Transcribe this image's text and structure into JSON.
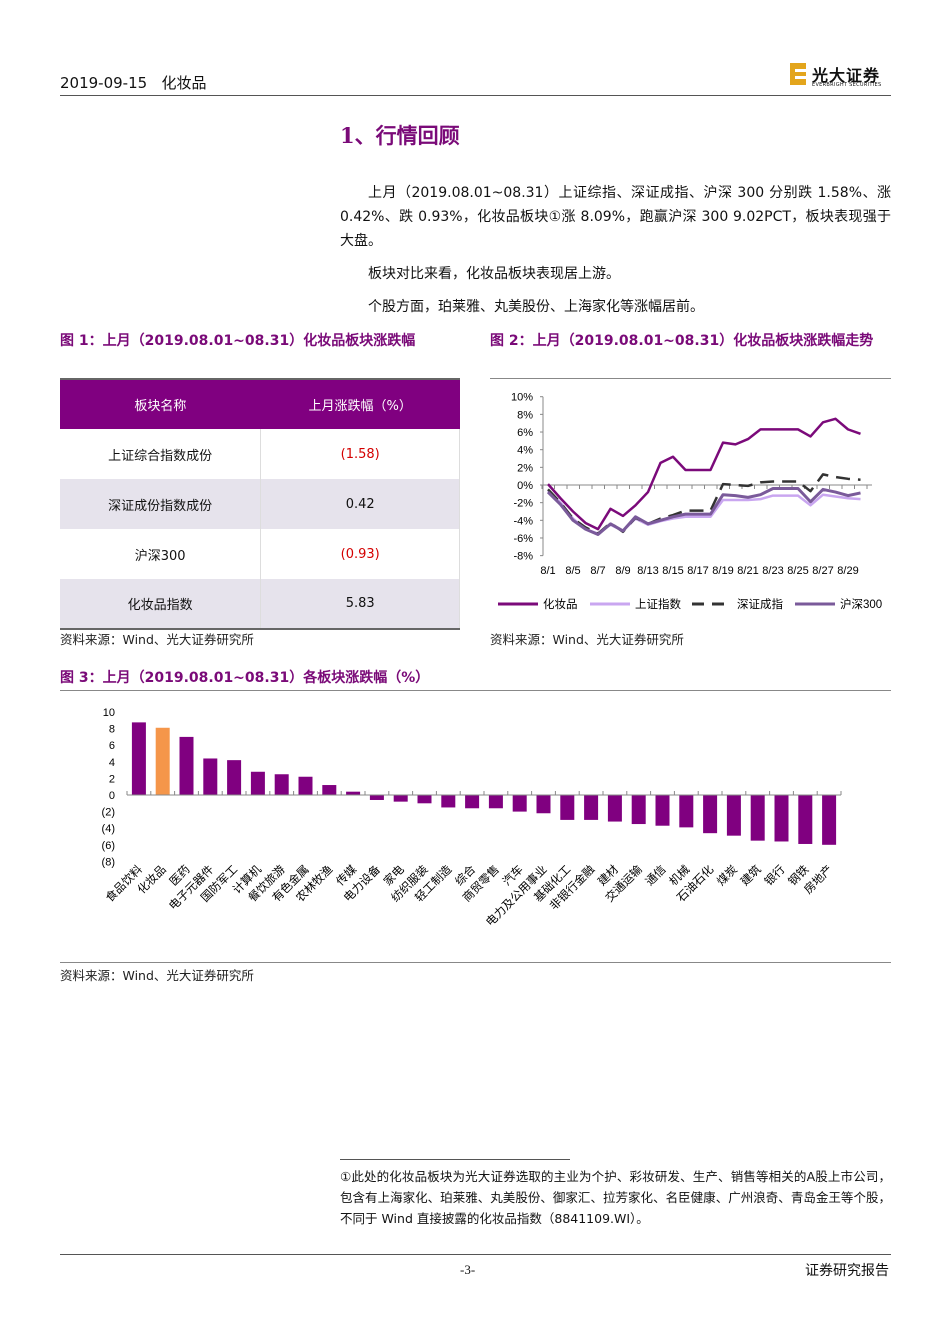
{
  "header": {
    "date": "2019-09-15",
    "industry": "化妆品",
    "logo_cn": "光大证券",
    "logo_en": "EVERBRIGHT SECURITIES"
  },
  "section_title": "1、行情回顾",
  "paragraphs": [
    "上月（2019.08.01~08.31）上证综指、深证成指、沪深 300 分别跌 1.58%、涨 0.42%、跌 0.93%，化妆品板块①涨 8.09%，跑赢沪深 300 9.02PCT，板块表现强于大盘。",
    "板块对比来看，化妆品板块表现居上游。",
    "个股方面，珀莱雅、丸美股份、上海家化等涨幅居前。"
  ],
  "fig1": {
    "title": "图 1：上月（2019.08.01~08.31）化妆品板块涨跌幅",
    "headers": [
      "板块名称",
      "上月涨跌幅（%）"
    ],
    "rows": [
      [
        "上证综合指数成份",
        "(1.58)"
      ],
      [
        "深证成份指数成份",
        "0.42"
      ],
      [
        "沪深300",
        "(0.93)"
      ],
      [
        "化妆品指数",
        "5.83"
      ]
    ],
    "source": "资料来源：Wind、光大证券研究所"
  },
  "fig2": {
    "title": "图 2：上月（2019.08.01~08.31）化妆品板块涨跌幅走势",
    "source": "资料来源：Wind、光大证券研究所"
  },
  "fig3": {
    "title": "图 3：上月（2019.08.01~08.31）各板块涨跌幅（%）",
    "source": "资料来源：Wind、光大证券研究所"
  },
  "chart_data": [
    {
      "type": "line",
      "title": "上月（2019.08.01~08.31）化妆品板块涨跌幅走势",
      "ylim": [
        -8,
        10
      ],
      "yticks": [
        "10%",
        "8%",
        "6%",
        "4%",
        "2%",
        "0%",
        "-2%",
        "-4%",
        "-6%",
        "-8%"
      ],
      "xlabels": [
        "8/1",
        "8/5",
        "8/7",
        "8/9",
        "8/13",
        "8/15",
        "8/17",
        "8/19",
        "8/21",
        "8/23",
        "8/25",
        "8/27",
        "8/29"
      ],
      "legend_position": "bottom",
      "series": [
        {
          "name": "化妆品",
          "color": "#7b0a7a",
          "dash": "",
          "values": [
            0.1,
            -1.5,
            -3.0,
            -4.3,
            -5.0,
            -2.7,
            -3.5,
            -2.3,
            -0.8,
            2.5,
            3.2,
            1.7,
            1.7,
            1.7,
            4.8,
            4.6,
            5.2,
            6.3,
            6.3,
            6.3,
            6.3,
            5.5,
            7.1,
            7.5,
            6.3,
            5.8
          ]
        },
        {
          "name": "上证指数",
          "color": "#c9a6f0",
          "dash": "",
          "values": [
            -0.6,
            -2.0,
            -3.8,
            -5.0,
            -5.5,
            -4.5,
            -5.2,
            -3.8,
            -4.5,
            -4.1,
            -3.8,
            -3.6,
            -3.6,
            -3.6,
            -1.7,
            -1.7,
            -1.7,
            -1.6,
            -1.2,
            -1.2,
            -1.2,
            -2.3,
            -1.1,
            -1.3,
            -1.5,
            -1.6
          ]
        },
        {
          "name": "深证成指",
          "color": "#333333",
          "dash": "14,8",
          "values": [
            -0.5,
            -2.0,
            -3.8,
            -4.8,
            -5.5,
            -4.3,
            -5.3,
            -3.7,
            -4.4,
            -3.8,
            -3.4,
            -2.9,
            -2.9,
            -2.9,
            0.1,
            0.0,
            -0.1,
            0.3,
            0.4,
            0.4,
            0.4,
            -0.7,
            1.2,
            0.9,
            0.7,
            0.6
          ]
        },
        {
          "name": "沪深300",
          "color": "#7a5a9a",
          "dash": "",
          "values": [
            -0.8,
            -2.2,
            -4.0,
            -5.0,
            -5.6,
            -4.4,
            -5.2,
            -3.6,
            -4.4,
            -4.0,
            -3.6,
            -3.3,
            -3.3,
            -3.3,
            -1.1,
            -1.2,
            -1.4,
            -1.1,
            -0.4,
            -0.4,
            -0.4,
            -1.9,
            -0.5,
            -0.8,
            -1.2,
            -0.9
          ]
        }
      ]
    },
    {
      "type": "bar",
      "title": "上月（2019.08.01~08.31）各板块涨跌幅（%）",
      "ylim": [
        -8,
        10
      ],
      "yticks": [
        "10",
        "8",
        "6",
        "4",
        "2",
        "0",
        "(2)",
        "(4)",
        "(6)",
        "(8)"
      ],
      "bar_color": "#800080",
      "highlight_color": "#f5964a",
      "highlight": "化妆品",
      "categories": [
        "食品饮料",
        "化妆品",
        "医药",
        "电子元器件",
        "国防军工",
        "计算机",
        "餐饮旅游",
        "有色金属",
        "农林牧渔",
        "传媒",
        "电力设备",
        "家电",
        "纺织服装",
        "轻工制造",
        "综合",
        "商贸零售",
        "汽车",
        "电力及公用事业",
        "基础化工",
        "非银行金融",
        "建材",
        "交通运输",
        "通信",
        "机械",
        "石油石化",
        "煤炭",
        "建筑",
        "银行",
        "钢铁",
        "房地产"
      ],
      "values": [
        8.75,
        8.1,
        7.0,
        4.4,
        4.2,
        2.8,
        2.5,
        2.2,
        1.2,
        0.4,
        -0.6,
        -0.8,
        -1.0,
        -1.5,
        -1.6,
        -1.6,
        -2.0,
        -2.2,
        -3.0,
        -3.0,
        -3.2,
        -3.5,
        -3.7,
        -3.9,
        -4.6,
        -4.9,
        -5.5,
        -5.6,
        -5.9,
        -6.0
      ]
    }
  ],
  "footnote": "①此处的化妆品板块为光大证券选取的主业为个护、彩妆研发、生产、销售等相关的A股上市公司，包含有上海家化、珀莱雅、丸美股份、御家汇、拉芳家化、名臣健康、广州浪奇、青岛金王等个股，不同于 Wind 直接披露的化妆品指数（8841109.WI）。",
  "footer": {
    "page": "-3-",
    "label": "证券研究报告"
  }
}
